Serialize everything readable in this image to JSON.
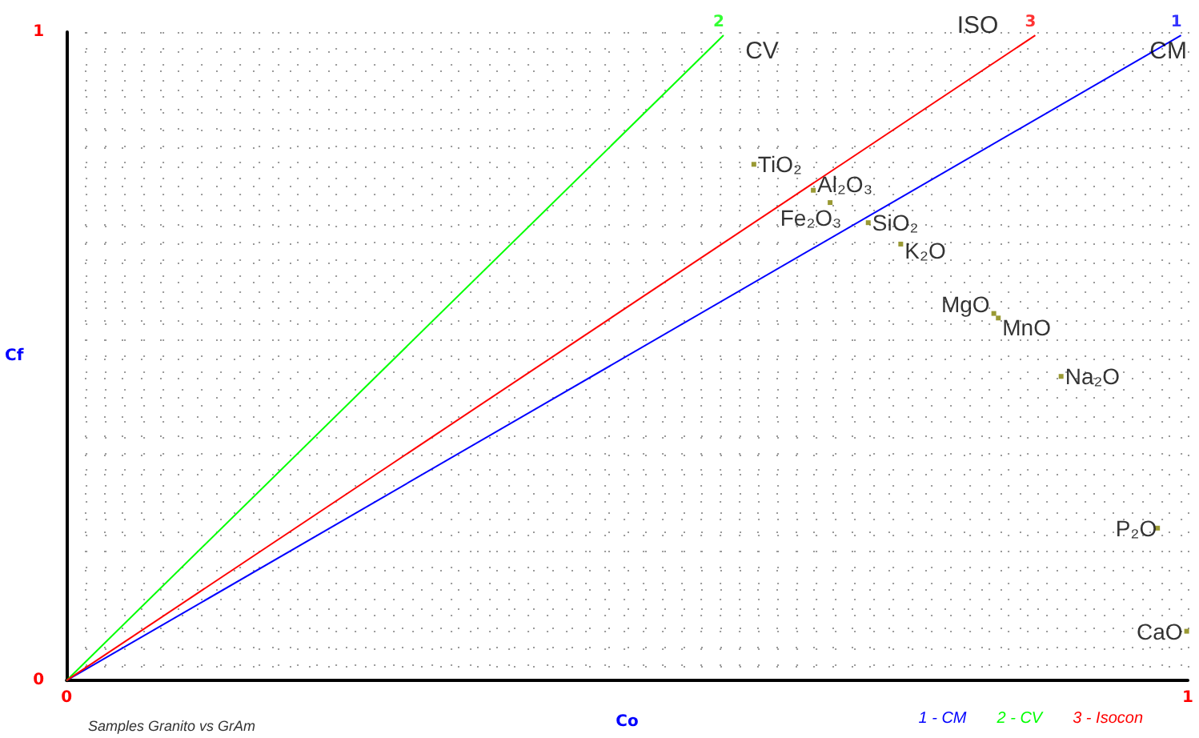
{
  "chart_data": {
    "type": "scatter",
    "xlabel": "Co",
    "ylabel": "Cf",
    "xlim": [
      0,
      1
    ],
    "ylim": [
      0,
      1
    ],
    "xticks": [
      0,
      1
    ],
    "yticks": [
      0,
      1
    ],
    "grid": true,
    "legend": "bottom right",
    "marker": "square",
    "series": [
      {
        "type": "line",
        "name": "1 - CM",
        "color": "#0000ff",
        "marker": "none",
        "x": [
          0,
          0.994
        ],
        "values": [
          0,
          0.995
        ]
      },
      {
        "type": "line",
        "name": "2 - CV",
        "color": "#00ff00",
        "marker": "none",
        "x": [
          0,
          0.586
        ],
        "values": [
          0,
          0.995
        ]
      },
      {
        "type": "line",
        "name": "3 - Isocon",
        "color": "#ff0000",
        "marker": "none",
        "x": [
          0,
          0.864
        ],
        "values": [
          0,
          0.995
        ]
      },
      {
        "name": "TiO₂",
        "color": "#808000",
        "x": [
          0.613
        ],
        "values": [
          0.796
        ]
      },
      {
        "name": "Al₂O₃",
        "color": "#808000",
        "x": [
          0.666
        ],
        "values": [
          0.756
        ]
      },
      {
        "name": "Fe₂O₃",
        "color": "#808000",
        "x": [
          0.681
        ],
        "values": [
          0.737
        ]
      },
      {
        "name": "SiO₂",
        "color": "#808000",
        "x": [
          0.715
        ],
        "values": [
          0.706
        ]
      },
      {
        "name": "K₂O",
        "color": "#808000",
        "x": [
          0.744
        ],
        "values": [
          0.673
        ]
      },
      {
        "name": "MgO",
        "color": "#808000",
        "x": [
          0.827
        ],
        "values": [
          0.566
        ]
      },
      {
        "name": "MnO",
        "color": "#808000",
        "x": [
          0.831
        ],
        "values": [
          0.559
        ]
      },
      {
        "name": "Na₂O",
        "color": "#808000",
        "x": [
          0.887
        ],
        "values": [
          0.469
        ]
      },
      {
        "name": "P₂O",
        "color": "#808000",
        "x": [
          0.973
        ],
        "values": [
          0.235
        ]
      },
      {
        "name": "CaO",
        "color": "#808000",
        "x": [
          0.999
        ],
        "values": [
          0.076
        ]
      }
    ],
    "annotations": [
      {
        "text": "1",
        "x": 0.994,
        "y": 0.995
      },
      {
        "text": "2",
        "x": 0.586,
        "y": 0.995
      },
      {
        "text": "3",
        "x": 0.864,
        "y": 0.995
      },
      {
        "text": "CM",
        "x": 0.994,
        "y": 0.995
      },
      {
        "text": "CV",
        "x": 0.586,
        "y": 0.995
      },
      {
        "text": "ISO",
        "x": 0.864,
        "y": 0.995
      },
      "Samples Granito vs GrAm"
    ]
  }
}
